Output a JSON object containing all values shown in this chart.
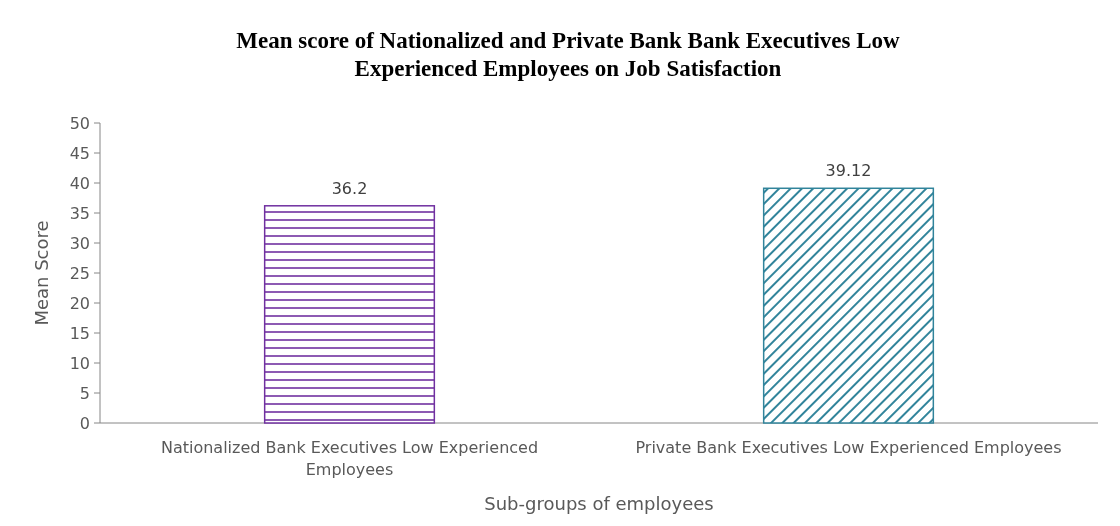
{
  "chart_data": {
    "type": "bar",
    "title": "Mean score of Nationalized and Private Bank Bank Executives Low Experienced Employees on Job Satisfaction",
    "categories": [
      "Nationalized Bank Executives Low Experienced Employees",
      "Private Bank Executives Low Experienced Employees"
    ],
    "values": [
      36.2,
      39.12
    ],
    "colors": [
      "#7030a0",
      "#31849b"
    ],
    "xlabel": "Sub-groups of employees",
    "ylabel": "Mean Score",
    "ylim": [
      0,
      50
    ],
    "yticks": [
      0,
      5,
      10,
      15,
      20,
      25,
      30,
      35,
      40,
      45,
      50
    ],
    "data_labels": true
  }
}
